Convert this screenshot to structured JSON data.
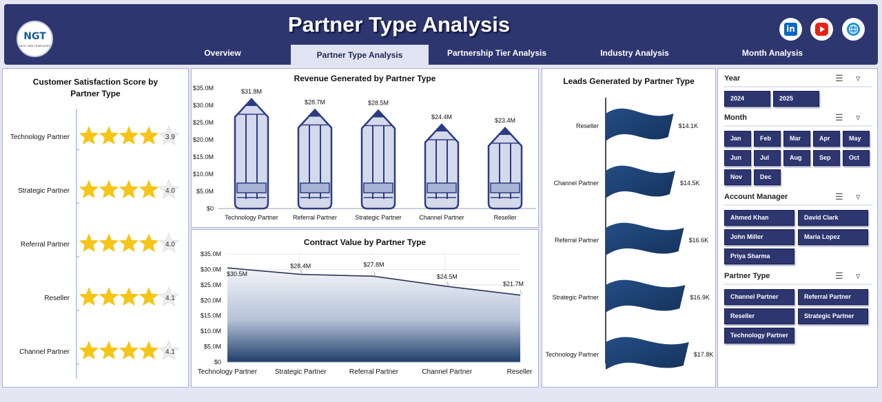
{
  "header": {
    "title": "Partner Type Analysis",
    "logo_text": "NGT",
    "logo_subtext": "NEXT GEN TEMPLATES",
    "social": [
      "linkedin-icon",
      "youtube-icon",
      "globe-icon"
    ]
  },
  "nav": {
    "tabs": [
      {
        "label": "Overview",
        "active": false
      },
      {
        "label": "Partner Type Analysis",
        "active": true
      },
      {
        "label": "Partnership Tier Analysis",
        "active": false
      },
      {
        "label": "Industry Analysis",
        "active": false
      },
      {
        "label": "Month Analysis",
        "active": false
      }
    ]
  },
  "colors": {
    "header_bg": "#2e3670",
    "accent_navy": "#1e3f6e",
    "star": "#f5c518",
    "pencil_fill": "#d4d9eb",
    "pencil_stroke": "#2b3d80"
  },
  "satisfaction": {
    "title_line1": "Customer Satisfaction Score by",
    "title_line2": "Partner Type",
    "rows": [
      {
        "label": "Technology Partner",
        "score": "3.9",
        "value": 3.9
      },
      {
        "label": "Strategic Partner",
        "score": "4.0",
        "value": 4.0
      },
      {
        "label": "Referral Partner",
        "score": "4.0",
        "value": 4.0
      },
      {
        "label": "Reseller",
        "score": "4.1",
        "value": 4.1
      },
      {
        "label": "Channel Partner",
        "score": "4.1",
        "value": 4.1
      }
    ]
  },
  "chart_data": [
    {
      "type": "bar",
      "title": "Revenue Generated by Partner Type",
      "categories": [
        "Technology Partner",
        "Referral Partner",
        "Strategic Partner",
        "Channel Partner",
        "Reseller"
      ],
      "values": [
        31.8,
        28.7,
        28.5,
        24.4,
        23.4
      ],
      "data_labels": [
        "$31.8M",
        "$28.7M",
        "$28.5M",
        "$24.4M",
        "$23.4M"
      ],
      "yticks": [
        "$0",
        "$5.0M",
        "$10.0M",
        "$15.0M",
        "$20.0M",
        "$25.0M",
        "$30.0M",
        "$35.0M"
      ],
      "ylim": [
        0,
        35
      ]
    },
    {
      "type": "area",
      "title": "Contract Value by Partner Type",
      "categories": [
        "Technology Partner",
        "Strategic Partner",
        "Referral Partner",
        "Channel Partner",
        "Reseller"
      ],
      "values": [
        30.5,
        28.4,
        27.8,
        24.5,
        21.7
      ],
      "data_labels": [
        "$30.5M",
        "$28.4M",
        "$27.8M",
        "$24.5M",
        "$21.7M"
      ],
      "yticks": [
        "$0",
        "$5.0M",
        "$10.0M",
        "$15.0M",
        "$20.0M",
        "$25.0M",
        "$30.0M",
        "$35.0M"
      ],
      "ylim": [
        0,
        35
      ]
    },
    {
      "type": "bar",
      "orientation": "horizontal",
      "title": "Leads Generated by Partner Type",
      "categories": [
        "Reseller",
        "Channel Partner",
        "Referral Partner",
        "Strategic Partner",
        "Technology Partner"
      ],
      "values": [
        14.1,
        14.5,
        16.6,
        16.9,
        17.8
      ],
      "data_labels": [
        "$14.1K",
        "$14.5K",
        "$16.6K",
        "$16.9K",
        "$17.8K"
      ]
    }
  ],
  "slicers": {
    "year": {
      "label": "Year",
      "options": [
        "2024",
        "2025"
      ]
    },
    "month": {
      "label": "Month",
      "options": [
        "Jan",
        "Feb",
        "Mar",
        "Apr",
        "May",
        "Jun",
        "Jul",
        "Aug",
        "Sep",
        "Oct",
        "Nov",
        "Dec"
      ]
    },
    "manager": {
      "label": "Account Manager",
      "options": [
        "Ahmed Khan",
        "David Clark",
        "John Miller",
        "Maria Lopez",
        "Priya Sharma"
      ]
    },
    "ptype": {
      "label": "Partner Type",
      "options": [
        "Channel Partner",
        "Referral Partner",
        "Reseller",
        "Strategic Partner",
        "Technology Partner"
      ]
    }
  }
}
